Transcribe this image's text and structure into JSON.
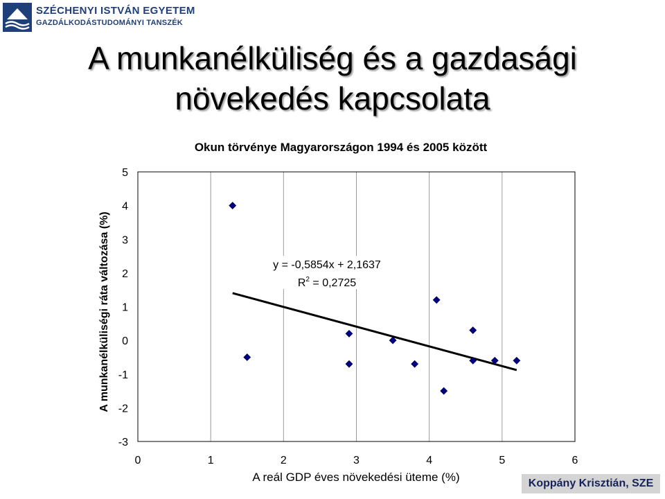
{
  "header": {
    "institution": "SZÉCHENYI ISTVÁN EGYETEM",
    "department": "GAZDÁLKODÁSTUDOMÁNYI TANSZÉK"
  },
  "slide": {
    "title_line1": "A munkanélküliség és a gazdasági",
    "title_line2": "növekedés kapcsolata"
  },
  "chart_data": {
    "type": "scatter",
    "title": "Okun törvénye Magyarországon 1994 és 2005 között",
    "xlabel": "A reál GDP éves növekedési üteme (%)",
    "ylabel": "A munkanélküliségi ráta változása (%)",
    "xlim": [
      0,
      6
    ],
    "ylim": [
      -3,
      5
    ],
    "x_ticks": [
      0,
      1,
      2,
      3,
      4,
      5,
      6
    ],
    "y_ticks": [
      5,
      4,
      3,
      2,
      1,
      0,
      -1,
      -2,
      -3
    ],
    "grid": "vertical",
    "marker": "diamond",
    "marker_color": "#000080",
    "points": [
      {
        "x": 1.3,
        "y": 4.0
      },
      {
        "x": 1.5,
        "y": -0.5
      },
      {
        "x": 2.9,
        "y": 0.2
      },
      {
        "x": 2.9,
        "y": -0.7
      },
      {
        "x": 3.5,
        "y": 0.0
      },
      {
        "x": 3.8,
        "y": -0.7
      },
      {
        "x": 4.1,
        "y": 1.2
      },
      {
        "x": 4.2,
        "y": -1.5
      },
      {
        "x": 4.6,
        "y": 0.3
      },
      {
        "x": 4.6,
        "y": -0.6
      },
      {
        "x": 4.9,
        "y": -0.6
      },
      {
        "x": 5.2,
        "y": -0.6
      }
    ],
    "trendline": {
      "slope": -0.5854,
      "intercept": 2.1637,
      "x_range": [
        1.3,
        5.2
      ],
      "equation_label": "y = -0,5854x + 2,1637",
      "r2_label_prefix": "R",
      "r2_label_value": " = 0,2725"
    }
  },
  "footer": {
    "author": "Koppány Krisztián, SZE"
  }
}
